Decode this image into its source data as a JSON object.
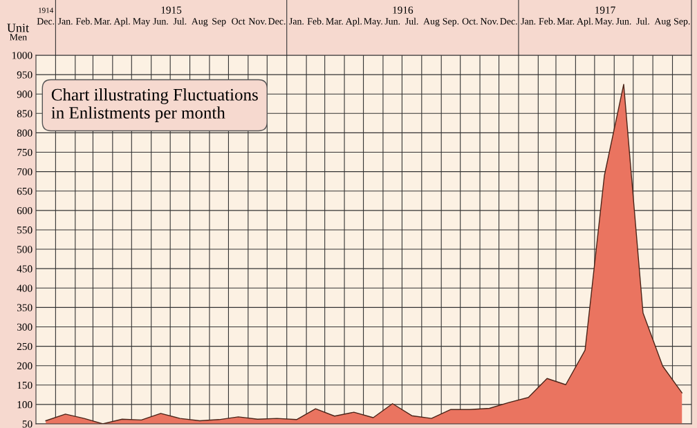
{
  "chart_data": {
    "type": "area",
    "title": "Chart illustrating Fluctuations\nin Enlistments per month",
    "ylabel": "Men",
    "annotations": [
      "Unit",
      "1914",
      "1915",
      "1916",
      "1917"
    ],
    "x": [
      "1914-12",
      "1915-01",
      "1915-02",
      "1915-03",
      "1915-04",
      "1915-05",
      "1915-06",
      "1915-07",
      "1915-08",
      "1915-09",
      "1915-10",
      "1915-11",
      "1915-12",
      "1916-01",
      "1916-02",
      "1916-03",
      "1916-04",
      "1916-05",
      "1916-06",
      "1916-07",
      "1916-08",
      "1916-09",
      "1916-10",
      "1916-11",
      "1916-12",
      "1917-01",
      "1917-02",
      "1917-03",
      "1917-04",
      "1917-05",
      "1917-06",
      "1917-07",
      "1917-08",
      "1917-09"
    ],
    "series": [
      {
        "color": "#ea7460",
        "values": [
          58,
          75,
          64,
          50,
          62,
          60,
          77,
          64,
          58,
          61,
          68,
          62,
          64,
          61,
          89,
          70,
          80,
          66,
          102,
          71,
          64,
          87,
          87,
          90,
          105,
          118,
          167,
          151,
          240,
          690,
          925,
          336,
          199,
          130
        ]
      }
    ],
    "xlim": [
      "1914-12-01",
      "1917-10-01"
    ],
    "xticks": [
      {
        "value": "1914-12",
        "label": "Dec."
      },
      {
        "value": "1915-01",
        "label": "Jan."
      },
      {
        "value": "1915-02",
        "label": "Feb."
      },
      {
        "value": "1915-03",
        "label": "Mar."
      },
      {
        "value": "1915-04",
        "label": "Apl."
      },
      {
        "value": "1915-05",
        "label": "May"
      },
      {
        "value": "1915-06",
        "label": "Jun."
      },
      {
        "value": "1915-07",
        "label": "Jul."
      },
      {
        "value": "1915-08",
        "label": "Aug"
      },
      {
        "value": "1915-09",
        "label": "Sep"
      },
      {
        "value": "1915-10",
        "label": "Oct"
      },
      {
        "value": "1915-11",
        "label": "Nov."
      },
      {
        "value": "1915-12",
        "label": "Dec."
      },
      {
        "value": "1916-01",
        "label": "Jan."
      },
      {
        "value": "1916-02",
        "label": "Feb."
      },
      {
        "value": "1916-03",
        "label": "Mar."
      },
      {
        "value": "1916-04",
        "label": "Apl."
      },
      {
        "value": "1916-05",
        "label": "May."
      },
      {
        "value": "1916-06",
        "label": "Jun."
      },
      {
        "value": "1916-07",
        "label": "Jul."
      },
      {
        "value": "1916-08",
        "label": "Aug"
      },
      {
        "value": "1916-09",
        "label": "Sep."
      },
      {
        "value": "1916-10",
        "label": "Oct."
      },
      {
        "value": "1916-11",
        "label": "Nov."
      },
      {
        "value": "1916-12",
        "label": "Dec."
      },
      {
        "value": "1917-01",
        "label": "Jan."
      },
      {
        "value": "1917-02",
        "label": "Feb."
      },
      {
        "value": "1917-03",
        "label": "Mar."
      },
      {
        "value": "1917-04",
        "label": "Apl."
      },
      {
        "value": "1917-05",
        "label": "May."
      },
      {
        "value": "1917-06",
        "label": "Jun."
      },
      {
        "value": "1917-07",
        "label": "Jul."
      },
      {
        "value": "1917-08",
        "label": "Aug"
      },
      {
        "value": "1917-09",
        "label": "Sep."
      }
    ],
    "ylim": [
      50,
      1000
    ],
    "yticks": [
      50,
      100,
      150,
      200,
      250,
      300,
      350,
      400,
      450,
      500,
      550,
      600,
      650,
      700,
      750,
      800,
      850,
      900,
      950,
      1000
    ],
    "grid": true,
    "legend": false
  }
}
